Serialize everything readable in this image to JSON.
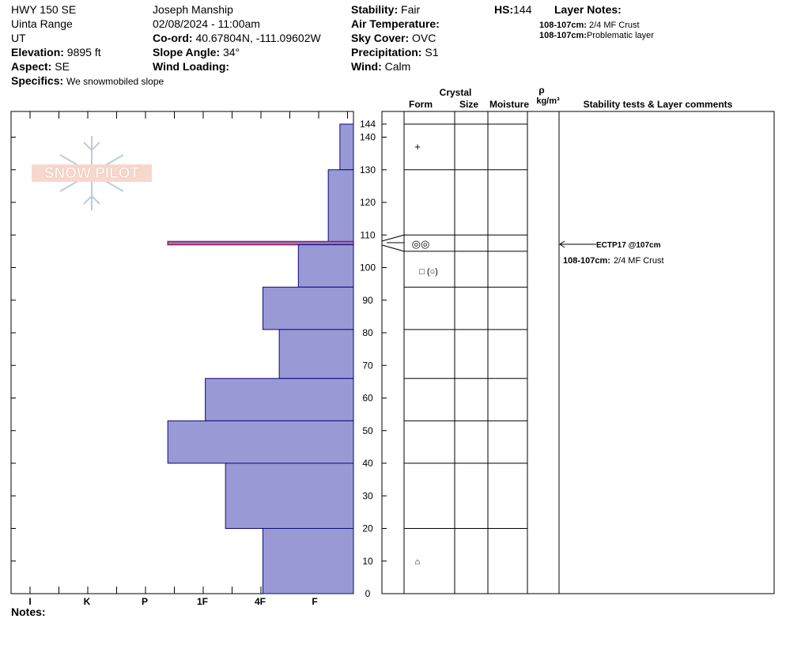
{
  "header": {
    "location": "HWY 150 SE",
    "range": "Uinta Range",
    "state": "UT",
    "elevation_label": "Elevation:",
    "elevation_value": "9895 ft",
    "aspect_label": "Aspect:",
    "aspect_value": "SE",
    "specifics_label": "Specifics:",
    "specifics_value": "We snowmobiled slope",
    "observer": "Joseph Manship",
    "datetime": "02/08/2024 - 11:00am",
    "coord_label": "Co-ord:",
    "coord_value": "40.67804N, -111.09602W",
    "slope_label": "Slope Angle:",
    "slope_value": "34°",
    "wind_loading_label": "Wind Loading:",
    "stability_label": "Stability:",
    "stability_value": "Fair",
    "air_temp_label": "Air Temperature:",
    "sky_label": "Sky Cover:",
    "sky_value": "OVC",
    "precip_label": "Precipitation:",
    "precip_value": "S1",
    "wind_label": "Wind:",
    "wind_value": "Calm",
    "hs_label": "HS:",
    "hs_value": "144",
    "layer_notes_label": "Layer Notes:",
    "layer_notes": [
      {
        "range": "108-107cm:",
        "text": "2/4 MF Crust"
      },
      {
        "range": "108-107cm:",
        "text": "Problematic layer"
      }
    ]
  },
  "logo_text": "SNOW PILOT",
  "columns": {
    "crystal": "Crystal",
    "form": "Form",
    "size": "Size",
    "moisture": "Moisture",
    "rho": "ρ",
    "density_unit": "kg/m³",
    "stability": "Stability tests & Layer comments"
  },
  "notes_label": "Notes:",
  "stability_test": "ECTP17 @107cm",
  "layer_comment": {
    "range": "108-107cm:",
    "text": "2/4 MF Crust"
  },
  "grain_symbols": {
    "top": "+",
    "crust": "◎◎",
    "facets": "□ (○)",
    "base": "⌂"
  },
  "chart_data": {
    "type": "snow-profile-hardness",
    "y_axis": {
      "label": "",
      "unit": "cm",
      "min": 0,
      "max": 144,
      "ticks": [
        0,
        10,
        20,
        30,
        40,
        50,
        60,
        70,
        80,
        90,
        100,
        110,
        120,
        130,
        140,
        144
      ]
    },
    "x_axis": {
      "categories": [
        "I",
        "K",
        "P",
        "1F",
        "4F",
        "F"
      ],
      "direction": "right-to-left"
    },
    "layers": [
      {
        "top": 144,
        "bottom": 130,
        "hardness": 0.35
      },
      {
        "top": 130,
        "bottom": 108,
        "hardness": 0.65
      },
      {
        "top": 108,
        "bottom": 107,
        "hardness": 3.6,
        "highlight": true
      },
      {
        "top": 107,
        "bottom": 94,
        "hardness": 1.3
      },
      {
        "top": 94,
        "bottom": 81,
        "hardness": 1.95
      },
      {
        "top": 81,
        "bottom": 66,
        "hardness": 1.65
      },
      {
        "top": 66,
        "bottom": 53,
        "hardness": 2.95
      },
      {
        "top": 53,
        "bottom": 40,
        "hardness": 3.6
      },
      {
        "top": 40,
        "bottom": 20,
        "hardness": 2.6
      },
      {
        "top": 20,
        "bottom": 0,
        "hardness": 1.95
      }
    ],
    "layer_boundaries": [
      144,
      130,
      110,
      105,
      94,
      81,
      66,
      53,
      40,
      20,
      0
    ],
    "colors": {
      "fill": "#9999d6",
      "stroke": "#0a0a7a",
      "highlight": "#b0174a",
      "highlight_fill": "#8080cc"
    }
  }
}
